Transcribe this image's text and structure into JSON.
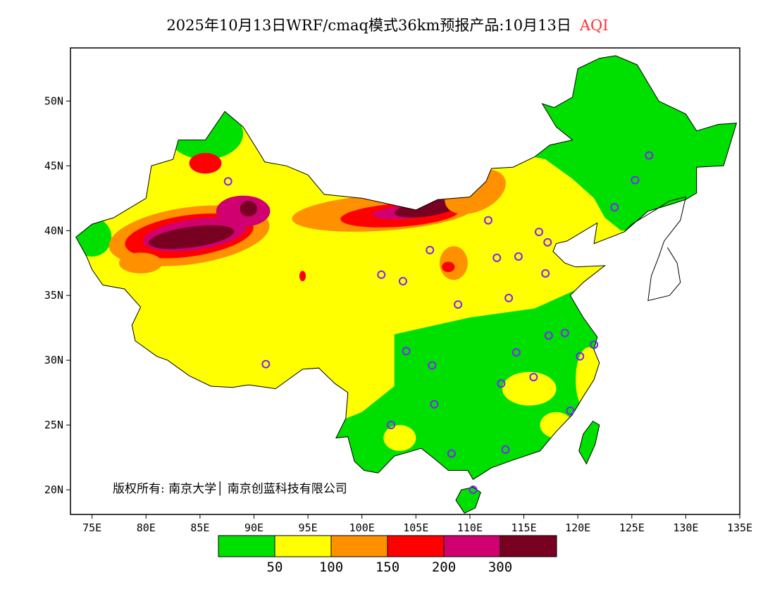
{
  "title": {
    "main": "2025年10月13日WRF/cmaq模式36km预报产品:10月13日",
    "variable": "AQI",
    "variable_color": "#ff3030"
  },
  "copyright": "版权所有: 南京大学│ 南京创蓝科技有限公司",
  "axes": {
    "lon_ticks": [
      "75E",
      "80E",
      "85E",
      "90E",
      "95E",
      "100E",
      "105E",
      "110E",
      "115E",
      "120E",
      "125E",
      "130E",
      "135E"
    ],
    "lon_values": [
      75,
      80,
      85,
      90,
      95,
      100,
      105,
      110,
      115,
      120,
      125,
      130,
      135
    ],
    "lat_ticks": [
      "20N",
      "25N",
      "30N",
      "35N",
      "40N",
      "45N",
      "50N"
    ],
    "lat_values": [
      20,
      25,
      30,
      35,
      40,
      45,
      50
    ],
    "lon_range": [
      73,
      135
    ],
    "lat_range": [
      18.1,
      54.1
    ]
  },
  "colorbar": {
    "colors": [
      "#00e000",
      "#ffff00",
      "#ff9000",
      "#ff0000",
      "#d00070",
      "#780020"
    ],
    "labels": [
      "50",
      "100",
      "150",
      "200",
      "300"
    ]
  },
  "stations": [
    [
      87.6,
      43.8
    ],
    [
      91.1,
      29.7
    ],
    [
      101.8,
      36.6
    ],
    [
      103.8,
      36.1
    ],
    [
      106.3,
      38.5
    ],
    [
      111.7,
      40.8
    ],
    [
      116.4,
      39.9
    ],
    [
      117.2,
      39.1
    ],
    [
      114.5,
      38.0
    ],
    [
      112.5,
      37.9
    ],
    [
      117.0,
      36.7
    ],
    [
      113.6,
      34.8
    ],
    [
      108.9,
      34.3
    ],
    [
      104.1,
      30.7
    ],
    [
      106.5,
      29.6
    ],
    [
      106.7,
      26.6
    ],
    [
      102.7,
      25.0
    ],
    [
      108.3,
      22.8
    ],
    [
      113.3,
      23.1
    ],
    [
      110.3,
      20.0
    ],
    [
      112.9,
      28.2
    ],
    [
      114.3,
      30.6
    ],
    [
      115.9,
      28.7
    ],
    [
      117.3,
      31.9
    ],
    [
      118.8,
      32.1
    ],
    [
      120.2,
      30.3
    ],
    [
      121.5,
      31.2
    ],
    [
      119.3,
      26.1
    ],
    [
      123.4,
      41.8
    ],
    [
      125.3,
      43.9
    ],
    [
      126.6,
      45.8
    ]
  ]
}
